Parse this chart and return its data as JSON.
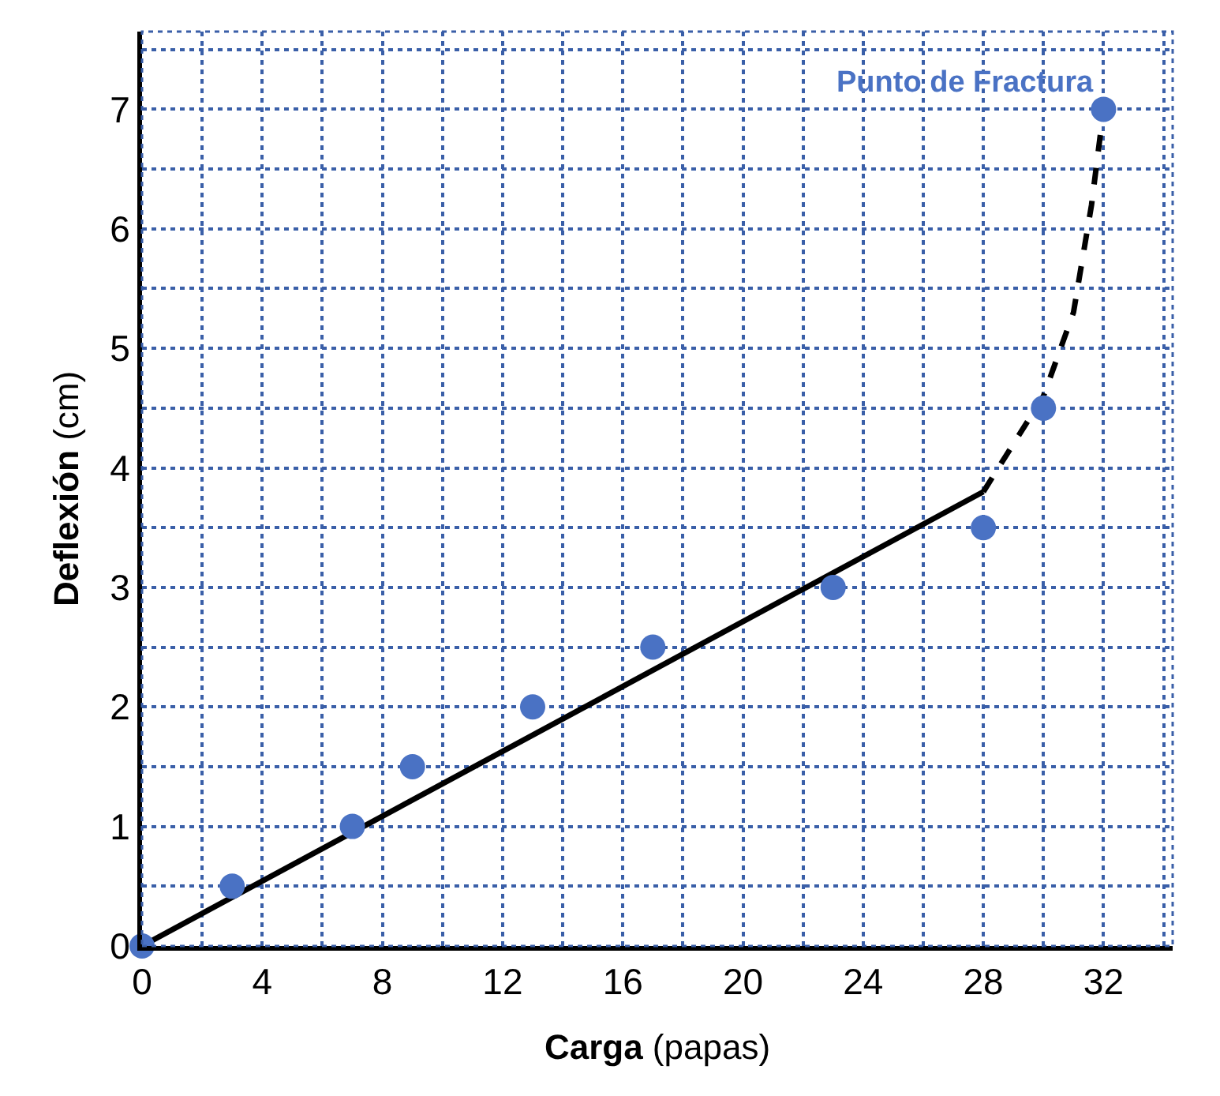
{
  "chart_data": {
    "type": "scatter",
    "xlabel": "Carga (papas)",
    "ylabel": "Deflexión (cm)",
    "xlim": [
      0,
      34.3
    ],
    "ylim": [
      0,
      7.65
    ],
    "xticks": [
      0,
      4,
      8,
      12,
      16,
      20,
      24,
      28,
      32
    ],
    "yticks": [
      0,
      1,
      2,
      3,
      4,
      5,
      6,
      7
    ],
    "grid": true,
    "series": [
      {
        "type": "line",
        "color": "#000000",
        "marker": "none",
        "line_style": "solid",
        "x": [
          0,
          28
        ],
        "values": [
          0,
          3.8
        ]
      },
      {
        "type": "line",
        "color": "#000000",
        "marker": "none",
        "line_style": "dashed",
        "x": [
          28,
          30,
          31,
          31.6,
          32
        ],
        "values": [
          3.8,
          4.6,
          5.3,
          6.2,
          7
        ]
      },
      {
        "color": "#4a72c4",
        "marker": "circle",
        "x": [
          0,
          3,
          7,
          9,
          13,
          17,
          23,
          28,
          30,
          32
        ],
        "values": [
          0,
          0.5,
          1,
          1.5,
          2,
          2.5,
          3,
          3.5,
          4.5,
          7
        ]
      }
    ],
    "annotations": [
      {
        "text": "Punto de Fractura",
        "x": 32,
        "y": 7
      }
    ]
  }
}
